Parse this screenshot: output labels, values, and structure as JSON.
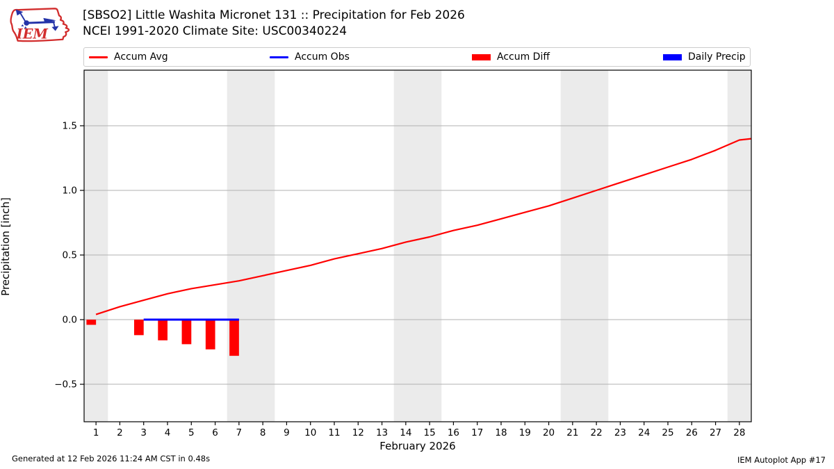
{
  "header": {
    "title": "[SBSO2] Little Washita Micronet 131 :: Precipitation for Feb 2026",
    "subtitle": "NCEI 1991-2020 Climate Site: USC00340224"
  },
  "logo": {
    "text": "IEM",
    "red": "#d22d2d",
    "blue": "#2433a8"
  },
  "legend": {
    "border_color": "#cccccc",
    "items": [
      {
        "label": "Accum Avg",
        "swatch": "line",
        "color": "#ff0000"
      },
      {
        "label": "Accum Obs",
        "swatch": "line",
        "color": "#0000ff"
      },
      {
        "label": "Accum Diff",
        "swatch": "patch",
        "color": "#ff0000"
      },
      {
        "label": "Daily Precip",
        "swatch": "patch",
        "color": "#0000ff"
      }
    ]
  },
  "footer": {
    "left": "Generated at 12 Feb 2026 11:24 AM CST in 0.48s",
    "right": "IEM Autoplot App #17"
  },
  "chart_data": {
    "type": "line+bar",
    "title": "[SBSO2] Little Washita Micronet 131 :: Precipitation for Feb 2026",
    "subtitle": "NCEI 1991-2020 Climate Site: USC00340224",
    "xlabel": "February 2026",
    "ylabel": "Precipitation [inch]",
    "xlim": [
      0.5,
      28.5
    ],
    "ylim": [
      -0.79,
      1.93
    ],
    "grid": "horizontal",
    "grid_color": "#b0b0b0",
    "band_color": "#ebebeb",
    "weekend_bands": [
      [
        0.5,
        1.5
      ],
      [
        6.5,
        8.5
      ],
      [
        13.5,
        15.5
      ],
      [
        20.5,
        22.5
      ],
      [
        27.5,
        28.5
      ]
    ],
    "xticks": [
      1,
      2,
      3,
      4,
      5,
      6,
      7,
      8,
      9,
      10,
      11,
      12,
      13,
      14,
      15,
      16,
      17,
      18,
      19,
      20,
      21,
      22,
      23,
      24,
      25,
      26,
      27,
      28
    ],
    "yticks": [
      {
        "v": -0.5,
        "label": "−0.5"
      },
      {
        "v": 0.0,
        "label": "0.0"
      },
      {
        "v": 0.5,
        "label": "0.5"
      },
      {
        "v": 1.0,
        "label": "1.0"
      },
      {
        "v": 1.5,
        "label": "1.5"
      }
    ],
    "series": [
      {
        "name": "Accum Avg",
        "kind": "line",
        "color": "#ff0000",
        "line_width": 2.2,
        "x": [
          1,
          2,
          3,
          4,
          5,
          6,
          7,
          8,
          9,
          10,
          11,
          12,
          13,
          14,
          15,
          16,
          17,
          18,
          19,
          20,
          21,
          22,
          23,
          24,
          25,
          26,
          27,
          28,
          28.5
        ],
        "y": [
          0.04,
          0.1,
          0.15,
          0.2,
          0.24,
          0.27,
          0.3,
          0.34,
          0.38,
          0.42,
          0.47,
          0.51,
          0.55,
          0.6,
          0.64,
          0.69,
          0.73,
          0.78,
          0.83,
          0.88,
          0.94,
          1.0,
          1.06,
          1.12,
          1.18,
          1.24,
          1.31,
          1.39,
          1.4
        ]
      },
      {
        "name": "Accum Obs",
        "kind": "line",
        "color": "#0000ff",
        "line_width": 3,
        "x": [
          3,
          7
        ],
        "y": [
          0.0,
          0.0
        ]
      },
      {
        "name": "Accum Diff",
        "kind": "bar",
        "color": "#ff0000",
        "bar_width": 0.4,
        "align": "right",
        "x": [
          1,
          3,
          4,
          5,
          6,
          7
        ],
        "y": [
          -0.04,
          -0.12,
          -0.16,
          -0.19,
          -0.23,
          -0.28
        ]
      },
      {
        "name": "Daily Precip",
        "kind": "bar",
        "color": "#0000ff",
        "bar_width": 0.4,
        "align": "right",
        "x": [],
        "y": []
      }
    ]
  }
}
